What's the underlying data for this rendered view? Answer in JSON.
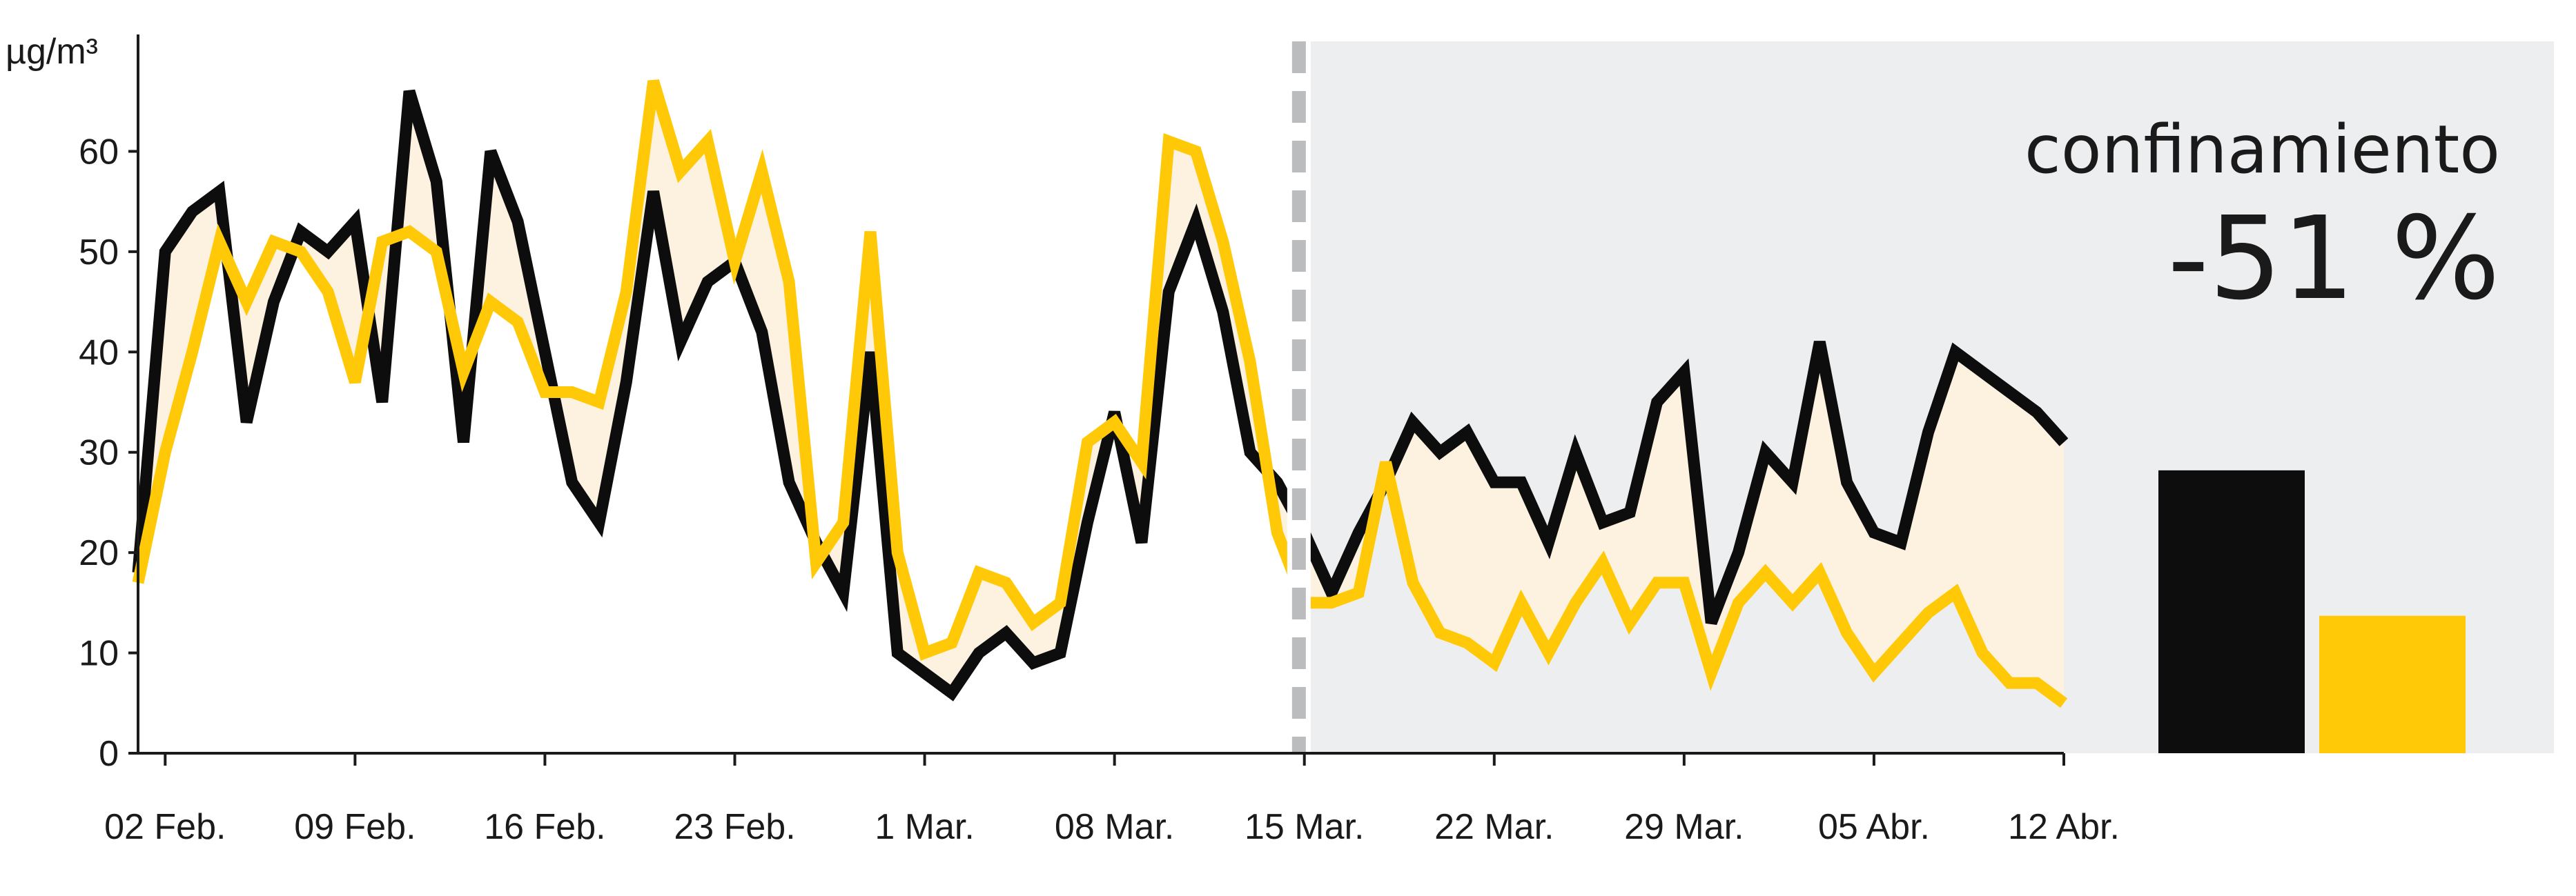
{
  "chart_data": {
    "type": "line",
    "unit_label": "µg/m³",
    "ylim": [
      0,
      70
    ],
    "y_ticks": [
      0,
      10,
      20,
      30,
      40,
      50,
      60
    ],
    "x_ticks": [
      "02 Feb.",
      "09 Feb.",
      "16 Feb.",
      "23 Feb.",
      "1 Mar.",
      "08 Mar.",
      "15 Mar.",
      "22 Mar.",
      "29 Mar.",
      "05 Abr.",
      "12 Abr."
    ],
    "x_start_tick_offset": 1,
    "x_day_count": 72,
    "lockdown_start_day": 42.8,
    "lockdown_label": "confinamiento",
    "lockdown_change": "-51 %",
    "colors": {
      "black": "#0d0d0d",
      "yellow": "#ffc907",
      "fill": "#fdf1e0",
      "shade": "#edeef0",
      "divider": "#bbbcbe"
    },
    "series": [
      {
        "color": "black",
        "values": [
          18,
          50,
          54,
          56,
          33,
          45,
          52,
          50,
          53,
          35,
          66,
          57,
          31,
          60,
          53,
          40,
          27,
          23,
          37,
          56,
          41,
          47,
          49,
          42,
          27,
          21,
          16,
          40,
          10,
          8,
          6,
          10,
          12,
          9,
          10,
          23,
          34,
          21,
          46,
          53,
          44,
          30,
          27,
          22,
          16,
          22,
          27,
          33,
          30,
          32,
          27,
          27,
          21,
          30,
          23,
          24,
          35,
          38,
          13,
          20,
          30,
          27,
          41,
          27,
          22,
          21,
          32,
          40,
          38,
          36,
          34,
          31
        ]
      },
      {
        "color": "yellow",
        "values": [
          17,
          30,
          40,
          51,
          45,
          51,
          50,
          46,
          37,
          51,
          52,
          50,
          38,
          45,
          43,
          36,
          36,
          35,
          46,
          67,
          58,
          61,
          49,
          58,
          47,
          19,
          23,
          52,
          20,
          10,
          11,
          18,
          17,
          13,
          15,
          31,
          33,
          29,
          61,
          60,
          51,
          39,
          22,
          15,
          15,
          16,
          29,
          17,
          12,
          11,
          9,
          15,
          10,
          15,
          19,
          13,
          17,
          17,
          8,
          15,
          18,
          15,
          18,
          12,
          8,
          11,
          14,
          16,
          10,
          7,
          7,
          5
        ]
      }
    ],
    "bars": [
      {
        "color": "black",
        "value": 28.2
      },
      {
        "color": "yellow",
        "value": 13.7
      }
    ]
  }
}
